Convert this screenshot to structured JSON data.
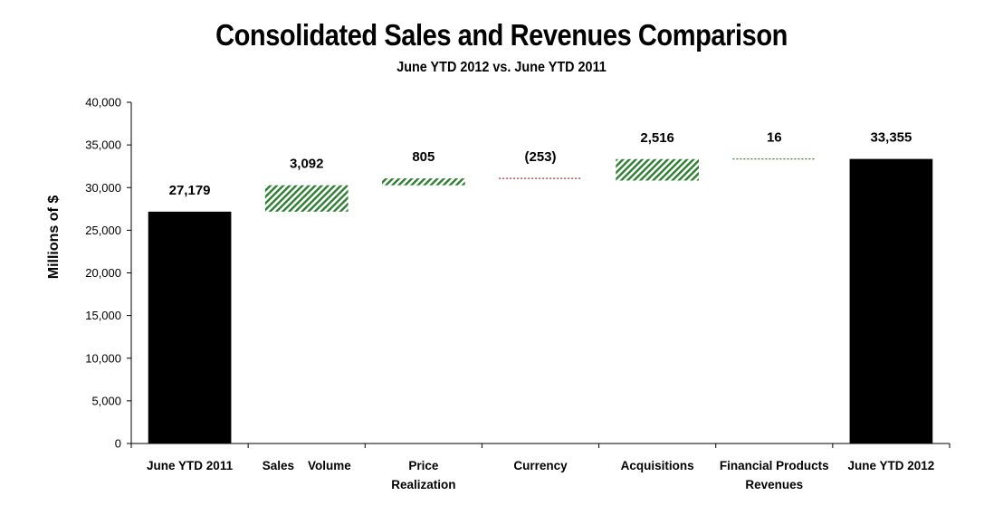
{
  "chart_data": {
    "type": "bar",
    "subtype": "waterfall",
    "title": "Consolidated Sales and Revenues Comparison",
    "subtitle": "June YTD 2012 vs. June YTD 2011",
    "xlabel": "",
    "ylabel": "Millions of $",
    "ylim": [
      0,
      40000
    ],
    "yticks": [
      0,
      5000,
      10000,
      15000,
      20000,
      25000,
      30000,
      35000,
      40000
    ],
    "ytick_labels": [
      "0",
      "5,000",
      "10,000",
      "15,000",
      "20,000",
      "25,000",
      "30,000",
      "35,000",
      "40,000"
    ],
    "grid": false,
    "legend": "none",
    "categories": [
      [
        "June YTD 2011"
      ],
      [
        "Sales    Volume"
      ],
      [
        "Price",
        "Realization"
      ],
      [
        "Currency"
      ],
      [
        "Acquisitions"
      ],
      [
        "Financial Products",
        "Revenues"
      ],
      [
        "June YTD 2012"
      ]
    ],
    "bars": [
      {
        "name": "June YTD 2011",
        "kind": "total",
        "start": 0,
        "end": 27179,
        "value": 27179,
        "label": "27,179"
      },
      {
        "name": "Sales Volume",
        "kind": "increase",
        "start": 27179,
        "end": 30271,
        "value": 3092,
        "label": "3,092"
      },
      {
        "name": "Price Realization",
        "kind": "increase",
        "start": 30271,
        "end": 31076,
        "value": 805,
        "label": "805"
      },
      {
        "name": "Currency",
        "kind": "decrease",
        "start": 31076,
        "end": 30823,
        "value": -253,
        "label": "(253)"
      },
      {
        "name": "Acquisitions",
        "kind": "increase",
        "start": 30823,
        "end": 33339,
        "value": 2516,
        "label": "2,516"
      },
      {
        "name": "Financial Products Revenues",
        "kind": "increase",
        "start": 33339,
        "end": 33355,
        "value": 16,
        "label": "16"
      },
      {
        "name": "June YTD 2012",
        "kind": "total",
        "start": 0,
        "end": 33355,
        "value": 33355,
        "label": "33,355"
      }
    ],
    "colors": {
      "total": "#000000",
      "increase": "#2e7d32",
      "decrease": "#a52a2a",
      "axis": "#000000"
    }
  }
}
